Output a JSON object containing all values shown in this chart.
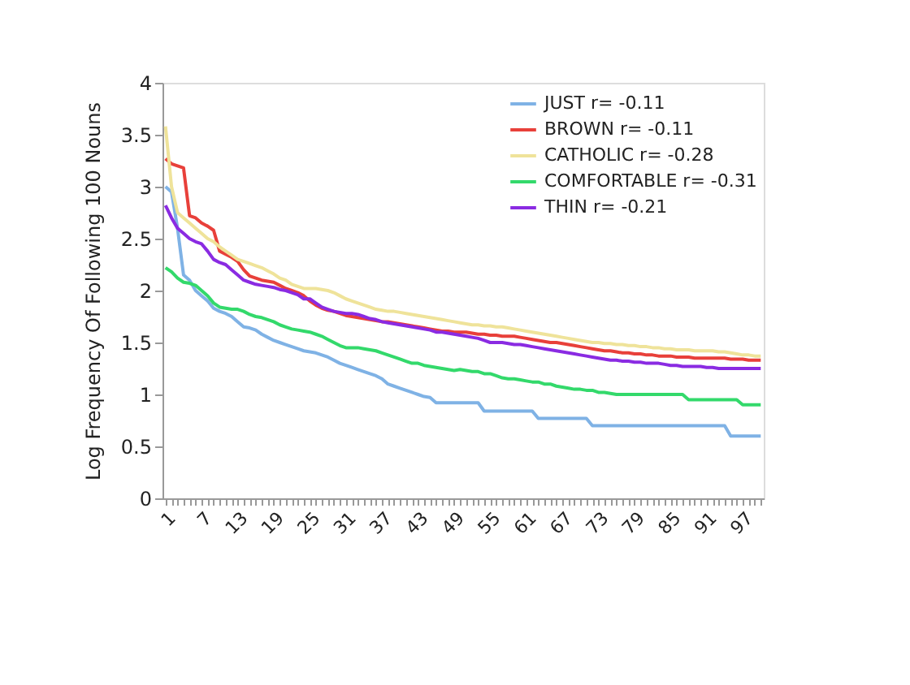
{
  "chart_data": {
    "type": "line",
    "ylabel": "Log Frequency Of Following 100 Nouns",
    "categories": [
      "1",
      null,
      null,
      null,
      null,
      null,
      "7",
      null,
      null,
      null,
      null,
      null,
      "13",
      null,
      null,
      null,
      null,
      null,
      "19",
      null,
      null,
      null,
      null,
      null,
      "25",
      null,
      null,
      null,
      null,
      null,
      "31",
      null,
      null,
      null,
      null,
      null,
      "37",
      null,
      null,
      null,
      null,
      null,
      "43",
      null,
      null,
      null,
      null,
      null,
      "49",
      null,
      null,
      null,
      null,
      null,
      "55",
      null,
      null,
      null,
      null,
      null,
      "61",
      null,
      null,
      null,
      null,
      null,
      "67",
      null,
      null,
      null,
      null,
      null,
      "73",
      null,
      null,
      null,
      null,
      null,
      "79",
      null,
      null,
      null,
      null,
      null,
      "85",
      null,
      null,
      null,
      null,
      null,
      "91",
      null,
      null,
      null,
      null,
      null,
      "97",
      null,
      null,
      null
    ],
    "ylim": [
      0,
      4
    ],
    "yticks": [
      0,
      0.5,
      1,
      1.5,
      2,
      2.5,
      3,
      3.5,
      4
    ],
    "grid": false,
    "legend": "top right",
    "marker": "none",
    "line_style": "solid",
    "series": [
      {
        "name": "JUST r= -0.11",
        "color": "#7fb2e5",
        "values": [
          3.0,
          2.95,
          2.6,
          2.15,
          2.1,
          2.0,
          1.95,
          1.9,
          1.83,
          1.8,
          1.78,
          1.75,
          1.7,
          1.65,
          1.64,
          1.62,
          1.58,
          1.55,
          1.52,
          1.5,
          1.48,
          1.46,
          1.44,
          1.42,
          1.41,
          1.4,
          1.38,
          1.36,
          1.33,
          1.3,
          1.28,
          1.26,
          1.24,
          1.22,
          1.2,
          1.18,
          1.15,
          1.1,
          1.08,
          1.06,
          1.04,
          1.02,
          1.0,
          0.98,
          0.97,
          0.92,
          0.92,
          0.92,
          0.92,
          0.92,
          0.92,
          0.92,
          0.92,
          0.84,
          0.84,
          0.84,
          0.84,
          0.84,
          0.84,
          0.84,
          0.84,
          0.84,
          0.77,
          0.77,
          0.77,
          0.77,
          0.77,
          0.77,
          0.77,
          0.77,
          0.77,
          0.7,
          0.7,
          0.7,
          0.7,
          0.7,
          0.7,
          0.7,
          0.7,
          0.7,
          0.7,
          0.7,
          0.7,
          0.7,
          0.7,
          0.7,
          0.7,
          0.7,
          0.7,
          0.7,
          0.7,
          0.7,
          0.7,
          0.7,
          0.6,
          0.6,
          0.6,
          0.6,
          0.6,
          0.6
        ]
      },
      {
        "name": "BROWN r= -0.11",
        "color": "#e8403a",
        "values": [
          3.27,
          3.22,
          3.2,
          3.18,
          2.72,
          2.7,
          2.65,
          2.62,
          2.58,
          2.38,
          2.35,
          2.32,
          2.28,
          2.2,
          2.14,
          2.12,
          2.1,
          2.09,
          2.08,
          2.05,
          2.02,
          2.0,
          1.98,
          1.95,
          1.9,
          1.86,
          1.83,
          1.81,
          1.8,
          1.78,
          1.76,
          1.75,
          1.74,
          1.73,
          1.72,
          1.71,
          1.7,
          1.7,
          1.69,
          1.68,
          1.67,
          1.66,
          1.65,
          1.64,
          1.63,
          1.62,
          1.61,
          1.61,
          1.6,
          1.6,
          1.6,
          1.59,
          1.58,
          1.58,
          1.57,
          1.57,
          1.56,
          1.56,
          1.56,
          1.55,
          1.54,
          1.53,
          1.52,
          1.51,
          1.5,
          1.5,
          1.49,
          1.48,
          1.47,
          1.46,
          1.45,
          1.44,
          1.43,
          1.42,
          1.42,
          1.41,
          1.4,
          1.4,
          1.39,
          1.39,
          1.38,
          1.38,
          1.37,
          1.37,
          1.37,
          1.36,
          1.36,
          1.36,
          1.35,
          1.35,
          1.35,
          1.35,
          1.35,
          1.35,
          1.34,
          1.34,
          1.34,
          1.33,
          1.33,
          1.33
        ]
      },
      {
        "name": "CATHOLIC r= -0.28",
        "color": "#efe39a",
        "values": [
          3.58,
          3.0,
          2.75,
          2.7,
          2.65,
          2.6,
          2.55,
          2.5,
          2.47,
          2.42,
          2.38,
          2.34,
          2.3,
          2.28,
          2.26,
          2.24,
          2.22,
          2.19,
          2.16,
          2.12,
          2.1,
          2.06,
          2.04,
          2.02,
          2.02,
          2.02,
          2.01,
          2.0,
          1.98,
          1.95,
          1.92,
          1.9,
          1.88,
          1.86,
          1.84,
          1.82,
          1.81,
          1.8,
          1.8,
          1.79,
          1.78,
          1.77,
          1.76,
          1.75,
          1.74,
          1.73,
          1.72,
          1.71,
          1.7,
          1.69,
          1.68,
          1.67,
          1.67,
          1.66,
          1.66,
          1.65,
          1.65,
          1.64,
          1.63,
          1.62,
          1.61,
          1.6,
          1.59,
          1.58,
          1.57,
          1.56,
          1.55,
          1.54,
          1.53,
          1.52,
          1.51,
          1.5,
          1.5,
          1.49,
          1.49,
          1.48,
          1.48,
          1.47,
          1.47,
          1.46,
          1.46,
          1.45,
          1.45,
          1.44,
          1.44,
          1.43,
          1.43,
          1.43,
          1.42,
          1.42,
          1.42,
          1.42,
          1.41,
          1.41,
          1.4,
          1.39,
          1.38,
          1.38,
          1.37,
          1.37
        ]
      },
      {
        "name": "COMFORTABLE r= -0.31",
        "color": "#33d96b",
        "values": [
          2.22,
          2.18,
          2.12,
          2.08,
          2.07,
          2.05,
          2.0,
          1.95,
          1.88,
          1.84,
          1.83,
          1.82,
          1.82,
          1.8,
          1.77,
          1.75,
          1.74,
          1.72,
          1.7,
          1.67,
          1.65,
          1.63,
          1.62,
          1.61,
          1.6,
          1.58,
          1.56,
          1.53,
          1.5,
          1.47,
          1.45,
          1.45,
          1.45,
          1.44,
          1.43,
          1.42,
          1.4,
          1.38,
          1.36,
          1.34,
          1.32,
          1.3,
          1.3,
          1.28,
          1.27,
          1.26,
          1.25,
          1.24,
          1.23,
          1.24,
          1.23,
          1.22,
          1.22,
          1.2,
          1.2,
          1.18,
          1.16,
          1.15,
          1.15,
          1.14,
          1.13,
          1.12,
          1.12,
          1.1,
          1.1,
          1.08,
          1.07,
          1.06,
          1.05,
          1.05,
          1.04,
          1.04,
          1.02,
          1.02,
          1.01,
          1.0,
          1.0,
          1.0,
          1.0,
          1.0,
          1.0,
          1.0,
          1.0,
          1.0,
          1.0,
          1.0,
          1.0,
          0.95,
          0.95,
          0.95,
          0.95,
          0.95,
          0.95,
          0.95,
          0.95,
          0.95,
          0.9,
          0.9,
          0.9,
          0.9
        ]
      },
      {
        "name": "THIN r= -0.21",
        "color": "#8a2be2",
        "values": [
          2.82,
          2.7,
          2.6,
          2.55,
          2.5,
          2.47,
          2.45,
          2.38,
          2.3,
          2.27,
          2.25,
          2.2,
          2.15,
          2.1,
          2.08,
          2.06,
          2.05,
          2.04,
          2.03,
          2.01,
          2.0,
          1.98,
          1.96,
          1.92,
          1.92,
          1.88,
          1.84,
          1.82,
          1.8,
          1.79,
          1.78,
          1.78,
          1.77,
          1.75,
          1.73,
          1.72,
          1.7,
          1.69,
          1.68,
          1.67,
          1.66,
          1.65,
          1.64,
          1.63,
          1.62,
          1.6,
          1.6,
          1.59,
          1.58,
          1.57,
          1.56,
          1.55,
          1.54,
          1.52,
          1.5,
          1.5,
          1.5,
          1.49,
          1.48,
          1.48,
          1.47,
          1.46,
          1.45,
          1.44,
          1.43,
          1.42,
          1.41,
          1.4,
          1.39,
          1.38,
          1.37,
          1.36,
          1.35,
          1.34,
          1.33,
          1.33,
          1.32,
          1.32,
          1.31,
          1.31,
          1.3,
          1.3,
          1.3,
          1.29,
          1.28,
          1.28,
          1.27,
          1.27,
          1.27,
          1.27,
          1.26,
          1.26,
          1.25,
          1.25,
          1.25,
          1.25,
          1.25,
          1.25,
          1.25,
          1.25
        ]
      }
    ]
  }
}
